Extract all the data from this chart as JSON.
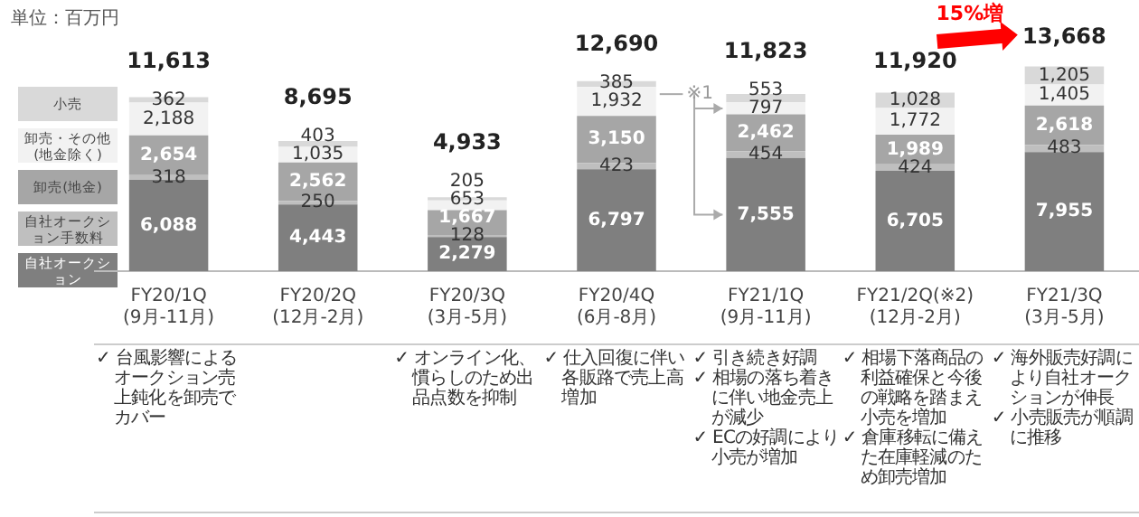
{
  "chart_data": {
    "type": "bar",
    "stacked": true,
    "legend": "left",
    "grid": false,
    "categories": [
      "FY20/1Q\n(9月-11月)",
      "FY20/2Q\n(12月-2月)",
      "FY20/3Q\n(3月-5月)",
      "FY20/4Q\n(6月-8月)",
      "FY21/1Q\n(9月-11月)",
      "FY21/2Q(※2)\n(12月-2月)",
      "FY21/3Q\n(3月-5月)"
    ],
    "series": [
      {
        "name": "自社オークション",
        "color": "#7f7f7f",
        "values": [
          6088,
          4443,
          2279,
          6797,
          7555,
          6705,
          7955
        ],
        "value_labels": [
          "6,088",
          "4,443",
          "2,279",
          "6,797",
          "7,555",
          "6,705",
          "7,955"
        ]
      },
      {
        "name": "自社オークション手数料",
        "color": "#bfbfbf",
        "values": [
          318,
          250,
          128,
          423,
          454,
          424,
          483
        ],
        "value_labels": [
          "318",
          "250",
          "128",
          "423",
          "454",
          "424",
          "483"
        ]
      },
      {
        "name": "卸売(地金)",
        "color": "#a6a6a6",
        "values": [
          2654,
          2562,
          1667,
          3150,
          2462,
          1989,
          2618
        ],
        "value_labels": [
          "2,654",
          "2,562",
          "1,667",
          "3,150",
          "2,462",
          "1,989",
          "2,618"
        ]
      },
      {
        "name": "卸売・その他(地金除く)",
        "color": "#f2f2f2",
        "values": [
          2188,
          1035,
          653,
          1932,
          797,
          1772,
          1405
        ],
        "value_labels": [
          "2,188",
          "1,035",
          "653",
          "1,932",
          "797",
          "1,772",
          "1,405"
        ]
      },
      {
        "name": "小売",
        "color": "#d9d9d9",
        "values": [
          362,
          403,
          205,
          385,
          553,
          1028,
          1205
        ],
        "value_labels": [
          "362",
          "403",
          "205",
          "385",
          "553",
          "1,028",
          "1,205"
        ]
      }
    ],
    "totals": [
      "11,613",
      "8,695",
      "4,933",
      "12,690",
      "11,823",
      "11,920",
      "13,668"
    ],
    "annotations": [
      "単位：百万円",
      "15%増",
      "※1",
      "✓ 台風影響によるオークション売上鈍化を卸売でカバー",
      "✓ オンライン化、慣らしのため出品点数を抑制",
      "✓ 仕入回復に伴い各販路で売上高増加",
      "✓ 引き続き好調",
      "✓ 相場の落ち着きに伴い地金売上が減少",
      "✓ ECの好調により小売が増加",
      "✓ 相場下落商品の利益確保と今後の戦略を踏まえ小売を増加",
      "✓ 倉庫移転に備えた在庫軽減のため卸売増加",
      "✓ 海外販売好調により自社オークションが伸長",
      "✓ 小売販売が順調に推移"
    ]
  }
}
